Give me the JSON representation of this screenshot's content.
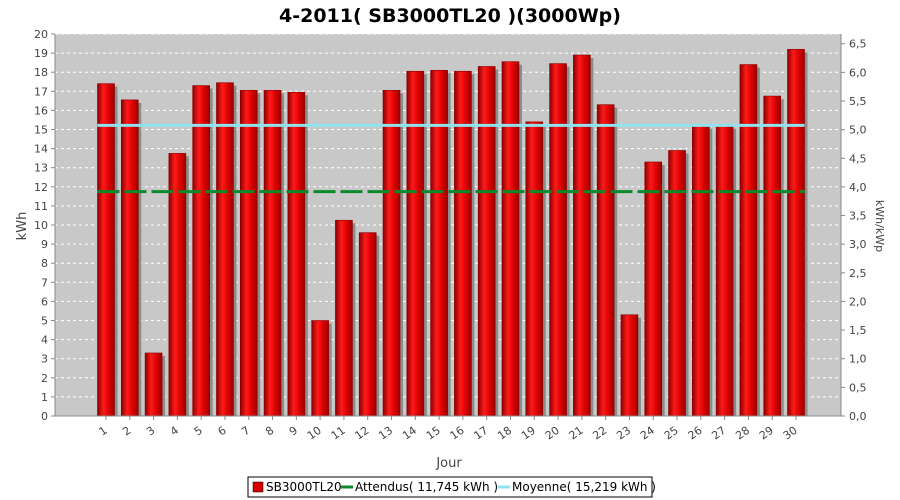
{
  "chart_data": {
    "type": "bar",
    "title": "4-2011( SB3000TL20 )(3000Wp)",
    "xlabel": "Jour",
    "ylabel": "kWh",
    "ylabel_right": "kWh/kWp",
    "categories": [
      "1",
      "2",
      "3",
      "4",
      "5",
      "6",
      "7",
      "8",
      "9",
      "10",
      "11",
      "12",
      "13",
      "14",
      "15",
      "16",
      "17",
      "18",
      "19",
      "20",
      "21",
      "22",
      "23",
      "24",
      "25",
      "26",
      "27",
      "28",
      "29",
      "30"
    ],
    "series": [
      {
        "name": "SB3000TL20",
        "values": [
          17.4,
          16.55,
          3.3,
          13.75,
          17.3,
          17.45,
          17.05,
          17.05,
          16.95,
          5.0,
          10.25,
          9.6,
          17.05,
          18.05,
          18.1,
          18.05,
          18.3,
          18.55,
          15.4,
          18.45,
          18.9,
          16.3,
          5.3,
          13.3,
          13.9,
          15.2,
          15.2,
          18.4,
          16.75,
          19.2
        ]
      }
    ],
    "reference_lines": [
      {
        "name": "Attendus",
        "legend_label": "Attendus( 11,745 kWh )",
        "value": 11.745,
        "color": "#0a8a2a",
        "style": "dashed"
      },
      {
        "name": "Moyenne",
        "legend_label": "Moyenne( 15,219 kWh )",
        "value": 15.219,
        "color": "#8fe3ee",
        "style": "solid"
      }
    ],
    "ylim": [
      0,
      20
    ],
    "y_ticks": [
      0,
      1,
      2,
      3,
      4,
      5,
      6,
      7,
      8,
      9,
      10,
      11,
      12,
      13,
      14,
      15,
      16,
      17,
      18,
      19,
      20
    ],
    "y2lim": [
      0,
      6.67
    ],
    "y2_ticks": [
      "0,0",
      "0,5",
      "1,0",
      "1,5",
      "2,0",
      "2,5",
      "3,0",
      "3,5",
      "4,0",
      "4,5",
      "5,0",
      "5,5",
      "6,0",
      "6,5"
    ],
    "y2_tick_values": [
      0,
      0.5,
      1.0,
      1.5,
      2.0,
      2.5,
      3.0,
      3.5,
      4.0,
      4.5,
      5.0,
      5.5,
      6.0,
      6.5
    ],
    "grid": true,
    "legend_position": "bottom-center",
    "colors": {
      "bar": "#d60000",
      "bar_dark": "#8a0000",
      "bar_shadow": "#8c8c8c",
      "plot_bg": "#c8c8c8",
      "grid": "#ffffff"
    }
  }
}
